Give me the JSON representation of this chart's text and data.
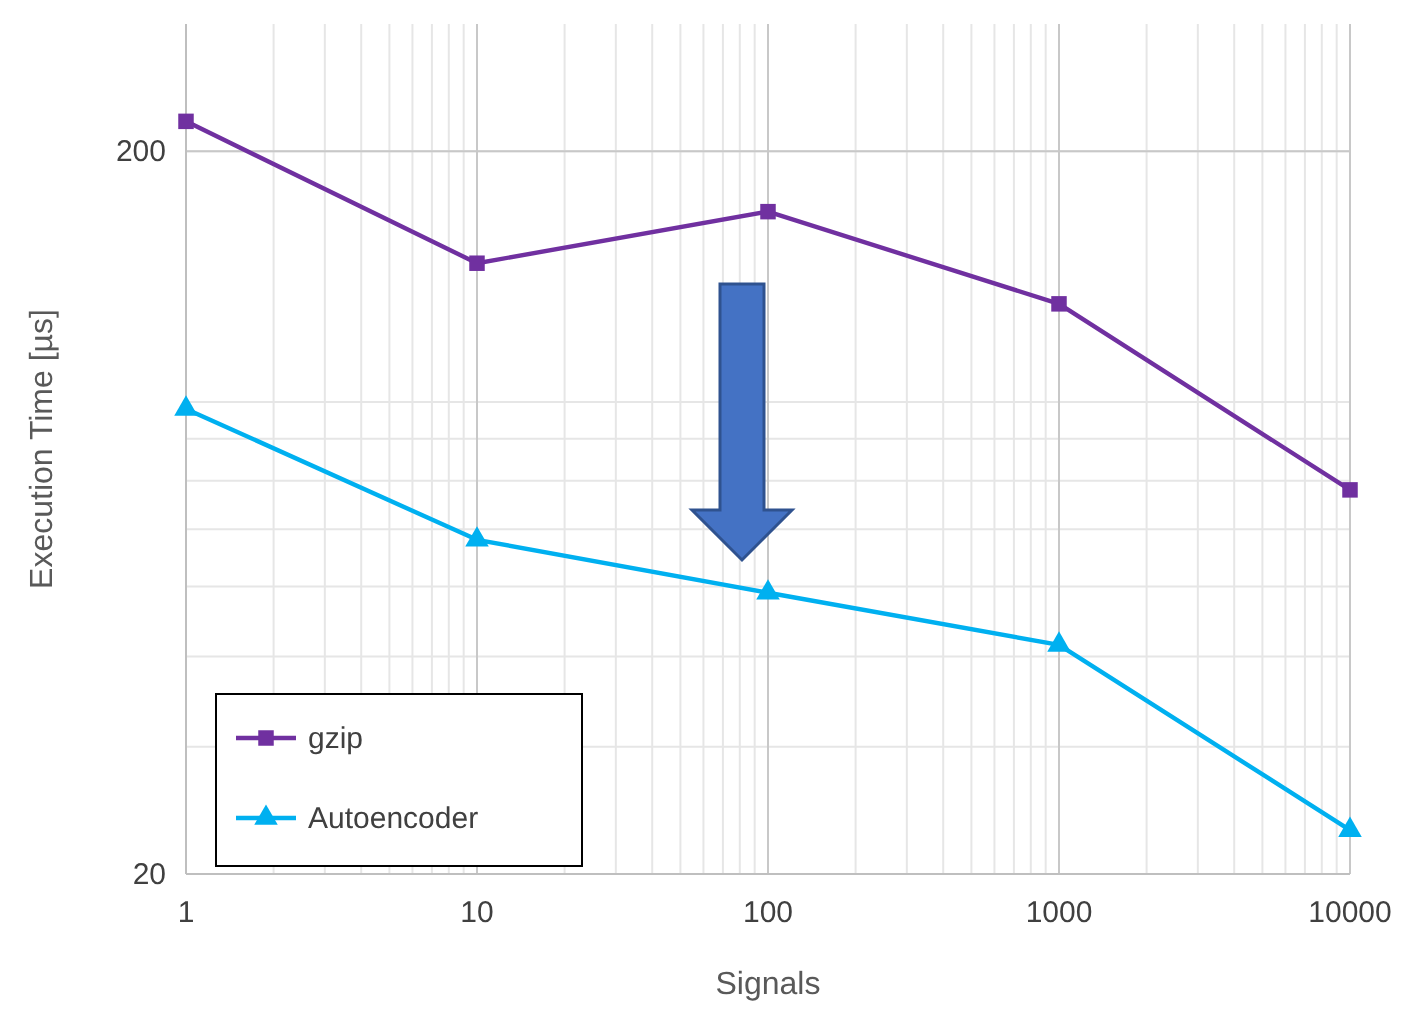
{
  "chart_data": {
    "type": "line",
    "xlabel": "Signals",
    "ylabel": "Execution Time [µs]",
    "log": "xy",
    "x": [
      1,
      10,
      100,
      1000,
      10000
    ],
    "xlim": [
      1,
      10000
    ],
    "xticks": [
      1,
      10,
      100,
      1000,
      10000
    ],
    "ylim": [
      20,
      300
    ],
    "yticks": [
      20,
      200
    ],
    "grid": true,
    "legend": "bottom left",
    "series": [
      {
        "name": "gzip",
        "color": "#7030a0",
        "marker": "square",
        "values": [
          220,
          140,
          165,
          123,
          68
        ]
      },
      {
        "name": "Autoencoder",
        "color": "#00b0f0",
        "marker": "triangle",
        "values": [
          88,
          58,
          49,
          41.5,
          23
        ]
      }
    ]
  }
}
